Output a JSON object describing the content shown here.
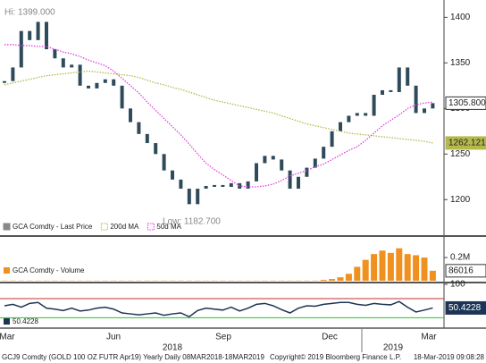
{
  "chart_data": [
    {
      "type": "price",
      "annotations": [
        "Hi: 1399.000",
        "Low: 1182.700"
      ],
      "ylim": [
        1162,
        1419
      ],
      "yticks": [
        1200,
        1250,
        1300,
        1350,
        1400
      ],
      "series": [
        {
          "name": "GCA Comdty - Last Price",
          "color": "#2f4a5a",
          "last_label": "1305.800",
          "values": [
            1330,
            1345,
            1385,
            1375,
            1395,
            1365,
            1355,
            1345,
            1348,
            1325,
            1322,
            1328,
            1332,
            1325,
            1300,
            1285,
            1272,
            1262,
            1250,
            1232,
            1222,
            1212,
            1195,
            1212,
            1215,
            1216,
            1214,
            1218,
            1212,
            1220,
            1240,
            1248,
            1244,
            1232,
            1212,
            1225,
            1235,
            1245,
            1258,
            1275,
            1285,
            1292,
            1295,
            1292,
            1315,
            1320,
            1318,
            1345,
            1325,
            1295,
            1300,
            1305.8
          ]
        },
        {
          "name": "200d MA",
          "color": "#b5b84a",
          "values": [
            1326,
            1328,
            1330,
            1332,
            1334,
            1336,
            1337,
            1338,
            1339,
            1340,
            1341,
            1340,
            1339,
            1338,
            1337,
            1336,
            1334,
            1331,
            1328,
            1326,
            1323,
            1321,
            1318,
            1315,
            1312,
            1309,
            1307,
            1305,
            1303,
            1301,
            1299,
            1297,
            1295,
            1292,
            1289,
            1286,
            1283,
            1281,
            1279,
            1277,
            1275,
            1273,
            1272,
            1271,
            1270,
            1269,
            1268,
            1267,
            1266,
            1265,
            1264,
            1262.121
          ]
        },
        {
          "name": "50d MA",
          "color": "#e040e0",
          "values": [
            1370,
            1370,
            1369,
            1369,
            1368,
            1368,
            1365,
            1362,
            1360,
            1357,
            1353,
            1350,
            1347,
            1341,
            1333,
            1325,
            1317,
            1307,
            1298,
            1289,
            1280,
            1271,
            1261,
            1250,
            1240,
            1233,
            1227,
            1221,
            1215,
            1214,
            1214,
            1215,
            1217,
            1221,
            1226,
            1229,
            1232,
            1236,
            1239,
            1244,
            1249,
            1254,
            1258,
            1265,
            1273,
            1281,
            1287,
            1293,
            1300,
            1304,
            1306,
            1307
          ]
        }
      ]
    },
    {
      "type": "bar",
      "name": "GCA Comdty - Volume",
      "color": "#f0901e",
      "ylim": [
        0,
        370000
      ],
      "yticks": [
        {
          "value": 200000,
          "label": "0.2M"
        }
      ],
      "values": [
        2000,
        2000,
        2000,
        2000,
        2000,
        2000,
        2000,
        2000,
        2000,
        2000,
        2000,
        2000,
        2000,
        2000,
        2000,
        2000,
        2000,
        2000,
        2000,
        2000,
        2000,
        2000,
        2000,
        2000,
        2000,
        2000,
        2000,
        2000,
        2000,
        2000,
        2000,
        2000,
        2000,
        2000,
        2000,
        2000,
        2000,
        2000,
        8000,
        15000,
        30000,
        60000,
        120000,
        180000,
        230000,
        260000,
        240000,
        280000,
        230000,
        220000,
        200000,
        86016
      ]
    },
    {
      "type": "line",
      "color": "#1c3556",
      "ylim": [
        10,
        100
      ],
      "yticks": [
        100
      ],
      "levels": [
        {
          "value": 70,
          "color": "#c03030"
        },
        {
          "value": 30,
          "color": "#30c030"
        }
      ],
      "values": [
        55,
        58,
        52,
        60,
        62,
        50,
        48,
        45,
        50,
        44,
        46,
        50,
        52,
        48,
        40,
        38,
        36,
        38,
        40,
        35,
        38,
        40,
        32,
        45,
        50,
        48,
        46,
        52,
        44,
        50,
        58,
        60,
        55,
        47,
        40,
        50,
        55,
        54,
        58,
        60,
        62,
        62,
        58,
        56,
        60,
        58,
        57,
        64,
        52,
        42,
        46,
        50.4228
      ]
    }
  ],
  "x_axis": {
    "months": [
      "Mar",
      "Jun",
      "Sep",
      "Dec",
      "Mar"
    ],
    "years": [
      "2018",
      "2019"
    ]
  },
  "footer": [
    "GCJ9 Comdty (GOLD 100 OZ FUTR Apr19) Yearly  Daily 08MAR2018-18MAR2019",
    "Copyright© 2019 Bloomberg Finance L.P.",
    "18-Mar-2019 09:08:28"
  ]
}
